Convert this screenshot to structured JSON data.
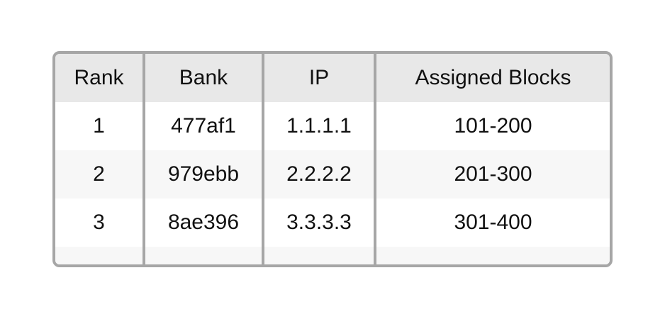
{
  "table": {
    "columns": [
      "Rank",
      "Bank",
      "IP",
      "Assigned Blocks"
    ],
    "rows": [
      [
        "1",
        "477af1",
        "1.1.1.1",
        "101-200"
      ],
      [
        "2",
        "979ebb",
        "2.2.2.2",
        "201-300"
      ],
      [
        "3",
        "8ae396",
        "3.3.3.3",
        "301-400"
      ],
      [
        "",
        "",
        "",
        ""
      ]
    ]
  },
  "colors": {
    "border": "#a6a6a6",
    "header_bg": "#e8e8e8",
    "zebra_bg": "#f7f7f7",
    "text": "#111111"
  }
}
